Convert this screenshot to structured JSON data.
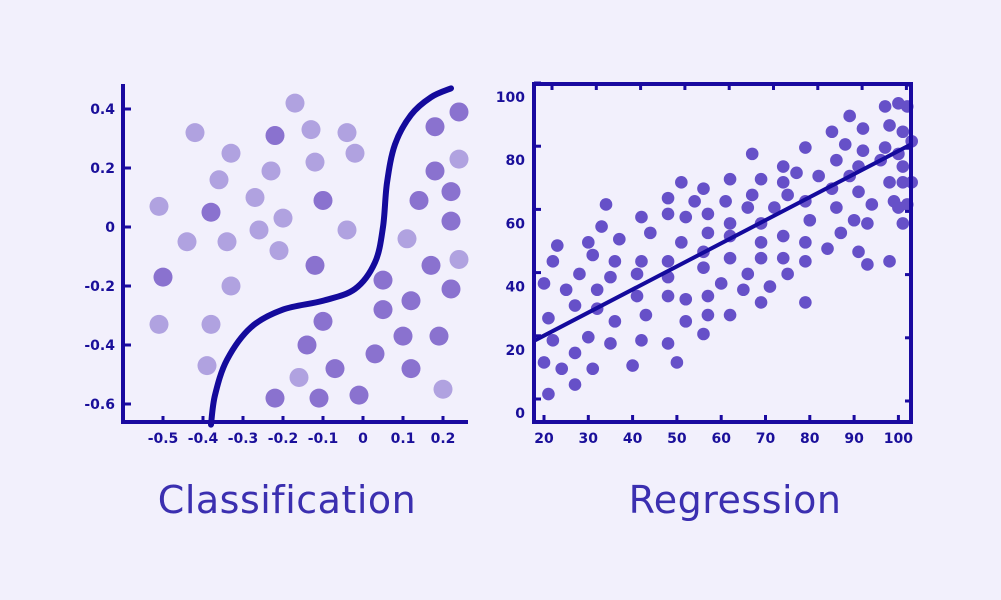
{
  "colors": {
    "background": "#f2f0fc",
    "axis": "#1a0aa0",
    "curve": "#140a9c",
    "caption": "#3b2fb0",
    "class_light": "#b0a2e0",
    "class_dark": "#8a72cf",
    "regression_dot": "#6650c8"
  },
  "chart_data": [
    {
      "type": "scatter",
      "title": "Classification",
      "xlabel": "",
      "ylabel": "",
      "xlim": [
        -0.57,
        0.25
      ],
      "ylim": [
        -0.67,
        0.45
      ],
      "x_ticks": [
        -0.5,
        -0.4,
        -0.3,
        -0.2,
        -0.1,
        0,
        0.1,
        0.2
      ],
      "x_tick_labels": [
        "-0.5",
        "-0.4",
        "-0.3",
        "-0.2",
        "-0.1",
        "0",
        "0.1",
        "0.2"
      ],
      "y_ticks": [
        0.4,
        0.2,
        0,
        -0.2,
        -0.4,
        -0.6
      ],
      "y_tick_labels": [
        "0.4",
        "0.2",
        "0",
        "-0.2",
        "-0.4",
        "-0.6"
      ],
      "grid": false,
      "legend": null,
      "decision_boundary": {
        "description": "S-shaped curve from (-0.38,-0.67) through (-0.12,-0.25) to (0.22,0.47)",
        "points": [
          [
            -0.38,
            -0.67
          ],
          [
            -0.37,
            -0.57
          ],
          [
            -0.34,
            -0.45
          ],
          [
            -0.28,
            -0.34
          ],
          [
            -0.2,
            -0.28
          ],
          [
            -0.1,
            -0.25
          ],
          [
            -0.02,
            -0.21
          ],
          [
            0.03,
            -0.12
          ],
          [
            0.05,
            0.0
          ],
          [
            0.06,
            0.15
          ],
          [
            0.08,
            0.28
          ],
          [
            0.12,
            0.38
          ],
          [
            0.17,
            0.44
          ],
          [
            0.22,
            0.47
          ]
        ]
      },
      "series": [
        {
          "name": "class-light",
          "color": "#b0a2e0",
          "points": [
            [
              -0.51,
              0.07
            ],
            [
              -0.42,
              0.32
            ],
            [
              -0.33,
              0.25
            ],
            [
              -0.36,
              0.16
            ],
            [
              -0.27,
              0.1
            ],
            [
              -0.44,
              -0.05
            ],
            [
              -0.34,
              -0.05
            ],
            [
              -0.26,
              -0.01
            ],
            [
              -0.2,
              0.03
            ],
            [
              -0.21,
              -0.08
            ],
            [
              -0.23,
              0.19
            ],
            [
              -0.17,
              0.42
            ],
            [
              -0.13,
              0.33
            ],
            [
              -0.12,
              0.22
            ],
            [
              -0.04,
              0.32
            ],
            [
              -0.02,
              0.25
            ],
            [
              -0.04,
              -0.01
            ],
            [
              -0.51,
              -0.33
            ],
            [
              -0.33,
              -0.2
            ],
            [
              -0.38,
              -0.33
            ],
            [
              -0.39,
              -0.47
            ],
            [
              0.11,
              -0.04
            ],
            [
              0.24,
              -0.11
            ],
            [
              0.24,
              0.23
            ],
            [
              -0.16,
              -0.51
            ],
            [
              0.2,
              -0.55
            ]
          ]
        },
        {
          "name": "class-dark",
          "color": "#8a72cf",
          "points": [
            [
              -0.5,
              -0.17
            ],
            [
              -0.38,
              0.05
            ],
            [
              -0.22,
              0.31
            ],
            [
              -0.1,
              0.09
            ],
            [
              -0.12,
              -0.13
            ],
            [
              0.18,
              0.34
            ],
            [
              0.24,
              0.39
            ],
            [
              0.18,
              0.19
            ],
            [
              0.14,
              0.09
            ],
            [
              0.22,
              0.12
            ],
            [
              0.22,
              0.02
            ],
            [
              0.17,
              -0.13
            ],
            [
              0.22,
              -0.21
            ],
            [
              0.05,
              -0.18
            ],
            [
              0.12,
              -0.25
            ],
            [
              0.05,
              -0.28
            ],
            [
              0.1,
              -0.37
            ],
            [
              0.19,
              -0.37
            ],
            [
              -0.1,
              -0.32
            ],
            [
              -0.14,
              -0.4
            ],
            [
              -0.07,
              -0.48
            ],
            [
              0.03,
              -0.43
            ],
            [
              0.12,
              -0.48
            ],
            [
              -0.22,
              -0.58
            ],
            [
              -0.11,
              -0.58
            ],
            [
              -0.01,
              -0.57
            ]
          ]
        }
      ]
    },
    {
      "type": "scatter",
      "title": "Regression",
      "xlabel": "",
      "ylabel": "",
      "xlim": [
        18,
        103
      ],
      "ylim": [
        -3,
        107
      ],
      "x_ticks": [
        20,
        30,
        40,
        50,
        60,
        70,
        80,
        90,
        100
      ],
      "x_tick_labels": [
        "20",
        "30",
        "40",
        "50",
        "60",
        "70",
        "80",
        "90",
        "100"
      ],
      "y_ticks": [
        0,
        20,
        40,
        60,
        80,
        100
      ],
      "y_tick_labels": [
        "0",
        "20",
        "40",
        "60",
        "80",
        "100"
      ],
      "grid": false,
      "legend": null,
      "fit_line": {
        "x": [
          18,
          103
        ],
        "y": [
          23,
          85
        ]
      },
      "series": [
        {
          "name": "observations",
          "color": "#6650c8",
          "points": [
            [
              20,
              41
            ],
            [
              20,
              16
            ],
            [
              21,
              30
            ],
            [
              21,
              6
            ],
            [
              22,
              48
            ],
            [
              22,
              23
            ],
            [
              23,
              53
            ],
            [
              24,
              14
            ],
            [
              25,
              39
            ],
            [
              27,
              34
            ],
            [
              27,
              19
            ],
            [
              27,
              9
            ],
            [
              28,
              44
            ],
            [
              30,
              54
            ],
            [
              30,
              24
            ],
            [
              31,
              50
            ],
            [
              31,
              14
            ],
            [
              32,
              39
            ],
            [
              32,
              33
            ],
            [
              33,
              59
            ],
            [
              34,
              66
            ],
            [
              35,
              43
            ],
            [
              35,
              22
            ],
            [
              36,
              48
            ],
            [
              36,
              29
            ],
            [
              37,
              55
            ],
            [
              40,
              15
            ],
            [
              41,
              44
            ],
            [
              41,
              37
            ],
            [
              42,
              48
            ],
            [
              42,
              62
            ],
            [
              42,
              23
            ],
            [
              43,
              31
            ],
            [
              44,
              57
            ],
            [
              48,
              68
            ],
            [
              48,
              63
            ],
            [
              48,
              48
            ],
            [
              48,
              43
            ],
            [
              48,
              37
            ],
            [
              48,
              22
            ],
            [
              50,
              16
            ],
            [
              51,
              73
            ],
            [
              51,
              54
            ],
            [
              52,
              62
            ],
            [
              52,
              36
            ],
            [
              52,
              29
            ],
            [
              54,
              67
            ],
            [
              56,
              71
            ],
            [
              56,
              51
            ],
            [
              56,
              46
            ],
            [
              56,
              25
            ],
            [
              57,
              63
            ],
            [
              57,
              57
            ],
            [
              57,
              37
            ],
            [
              57,
              31
            ],
            [
              60,
              41
            ],
            [
              61,
              67
            ],
            [
              62,
              74
            ],
            [
              62,
              60
            ],
            [
              62,
              56
            ],
            [
              62,
              49
            ],
            [
              62,
              31
            ],
            [
              65,
              39
            ],
            [
              66,
              65
            ],
            [
              66,
              44
            ],
            [
              67,
              69
            ],
            [
              67,
              82
            ],
            [
              69,
              74
            ],
            [
              69,
              60
            ],
            [
              69,
              54
            ],
            [
              69,
              49
            ],
            [
              69,
              35
            ],
            [
              71,
              40
            ],
            [
              72,
              65
            ],
            [
              74,
              73
            ],
            [
              74,
              78
            ],
            [
              74,
              56
            ],
            [
              74,
              49
            ],
            [
              75,
              44
            ],
            [
              75,
              69
            ],
            [
              77,
              76
            ],
            [
              79,
              84
            ],
            [
              79,
              67
            ],
            [
              79,
              54
            ],
            [
              79,
              48
            ],
            [
              79,
              35
            ],
            [
              80,
              61
            ],
            [
              82,
              75
            ],
            [
              84,
              52
            ],
            [
              85,
              89
            ],
            [
              85,
              71
            ],
            [
              86,
              80
            ],
            [
              86,
              65
            ],
            [
              87,
              57
            ],
            [
              88,
              85
            ],
            [
              89,
              94
            ],
            [
              89,
              75
            ],
            [
              90,
              61
            ],
            [
              91,
              70
            ],
            [
              91,
              78
            ],
            [
              91,
              51
            ],
            [
              92,
              90
            ],
            [
              92,
              83
            ],
            [
              93,
              47
            ],
            [
              93,
              60
            ],
            [
              94,
              66
            ],
            [
              96,
              80
            ],
            [
              97,
              84
            ],
            [
              97,
              97
            ],
            [
              98,
              91
            ],
            [
              98,
              73
            ],
            [
              98,
              48
            ],
            [
              99,
              67
            ],
            [
              100,
              65
            ],
            [
              100,
              98
            ],
            [
              100,
              82
            ],
            [
              101,
              89
            ],
            [
              101,
              78
            ],
            [
              101,
              73
            ],
            [
              101,
              60
            ],
            [
              102,
              97
            ],
            [
              102,
              66
            ],
            [
              103,
              86
            ],
            [
              103,
              73
            ]
          ]
        }
      ]
    }
  ],
  "captions": {
    "classification": "Classification",
    "regression": "Regression"
  }
}
